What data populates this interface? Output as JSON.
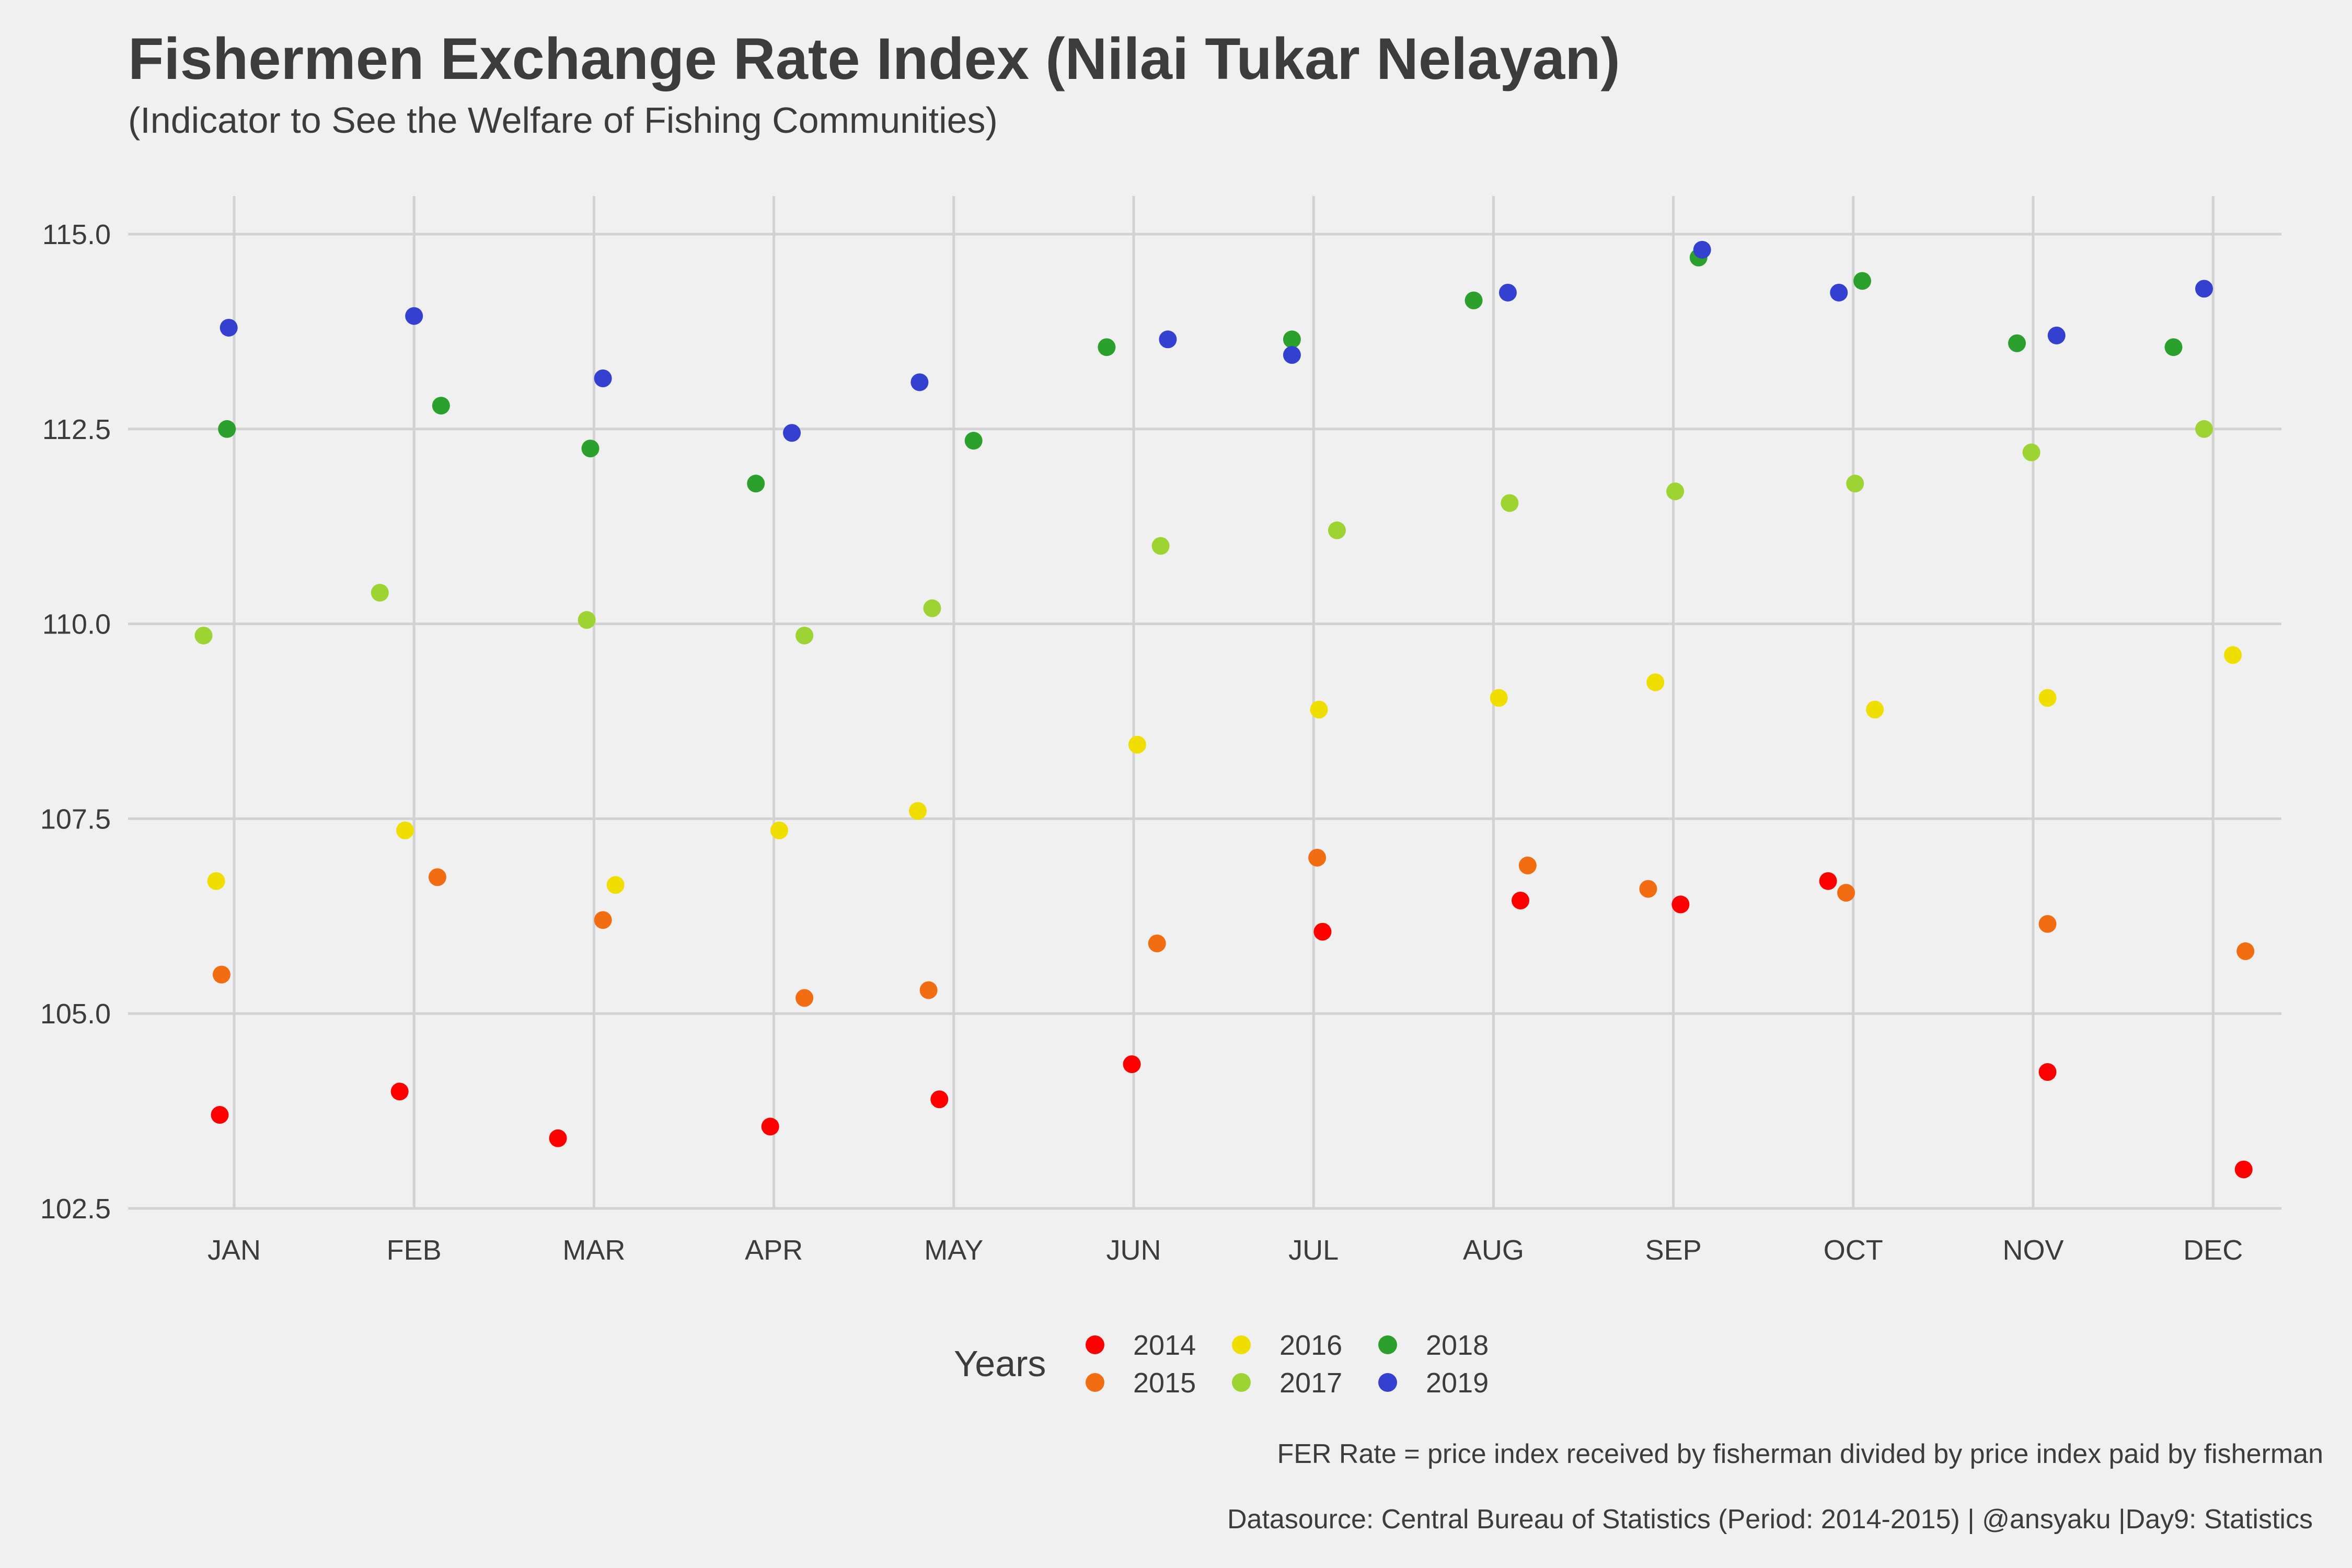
{
  "title": "Fishermen Exchange Rate Index (Nilai Tukar Nelayan)",
  "subtitle": "(Indicator to See the Welfare of Fishing Communities)",
  "caption_formula": "FER Rate = price index received by fisherman divided by price index paid by fisherman",
  "caption_source": "Datasource: Central Bureau of Statistics (Period: 2014-2015) | @ansyaku |Day9: Statistics",
  "chart_data": {
    "type": "scatter",
    "title": "Fishermen Exchange Rate Index (Nilai Tukar Nelayan)",
    "xlabel": "",
    "ylabel": "",
    "categories": [
      "JAN",
      "FEB",
      "MAR",
      "APR",
      "MAY",
      "JUN",
      "JUL",
      "AUG",
      "SEP",
      "OCT",
      "NOV",
      "DEC"
    ],
    "ylim": [
      102.5,
      115.0
    ],
    "yticks": [
      "102.5",
      "105.0",
      "107.5",
      "110.0",
      "112.5",
      "115.0"
    ],
    "grid": true,
    "legend_title": "Years",
    "legend_position": "bottom",
    "series": [
      {
        "name": "2014",
        "color": "#ff0000",
        "jitter": [
          -0.08,
          -0.08,
          -0.2,
          -0.02,
          -0.08,
          -0.01,
          0.05,
          0.15,
          0.04,
          -0.14,
          0.08,
          0.17
        ],
        "values": [
          103.7,
          104.0,
          103.4,
          103.55,
          103.9,
          104.35,
          106.05,
          106.45,
          106.4,
          106.7,
          104.25,
          103.0
        ]
      },
      {
        "name": "2015",
        "color": "#f26c12",
        "jitter": [
          -0.07,
          0.13,
          0.05,
          0.17,
          -0.14,
          0.13,
          0.02,
          0.19,
          -0.14,
          -0.04,
          0.08,
          0.18
        ],
        "values": [
          105.5,
          106.75,
          106.2,
          105.2,
          105.3,
          105.9,
          107.0,
          106.9,
          106.6,
          106.55,
          106.15,
          105.8
        ]
      },
      {
        "name": "2016",
        "color": "#f0de00",
        "jitter": [
          -0.1,
          -0.05,
          0.12,
          0.03,
          -0.2,
          0.02,
          0.03,
          0.03,
          -0.1,
          0.12,
          0.08,
          0.11
        ],
        "values": [
          106.7,
          107.35,
          106.65,
          107.35,
          107.6,
          108.45,
          108.9,
          109.05,
          109.25,
          108.9,
          109.05,
          109.6
        ]
      },
      {
        "name": "2017",
        "color": "#9dd433",
        "jitter": [
          -0.17,
          -0.19,
          -0.04,
          0.17,
          -0.12,
          0.15,
          0.13,
          0.09,
          0.01,
          0.01,
          -0.01,
          -0.05
        ],
        "values": [
          109.85,
          110.4,
          110.05,
          109.85,
          110.2,
          111.0,
          111.2,
          111.55,
          111.7,
          111.8,
          112.2,
          112.5
        ]
      },
      {
        "name": "2018",
        "color": "#2ca02c",
        "jitter": [
          -0.04,
          0.15,
          -0.02,
          -0.1,
          0.11,
          -0.15,
          -0.12,
          -0.11,
          0.14,
          0.05,
          -0.09,
          -0.22
        ],
        "values": [
          112.5,
          112.8,
          112.25,
          111.8,
          112.35,
          113.55,
          113.65,
          114.15,
          114.7,
          114.4,
          113.6,
          113.55
        ]
      },
      {
        "name": "2019",
        "color": "#3340d0",
        "jitter": [
          -0.03,
          0.0,
          0.05,
          0.1,
          -0.19,
          0.19,
          -0.12,
          0.08,
          0.16,
          -0.08,
          0.13,
          -0.05
        ],
        "values": [
          113.8,
          113.95,
          113.15,
          112.45,
          113.1,
          113.65,
          113.45,
          114.25,
          114.8,
          114.25,
          113.7,
          114.3
        ]
      }
    ]
  }
}
